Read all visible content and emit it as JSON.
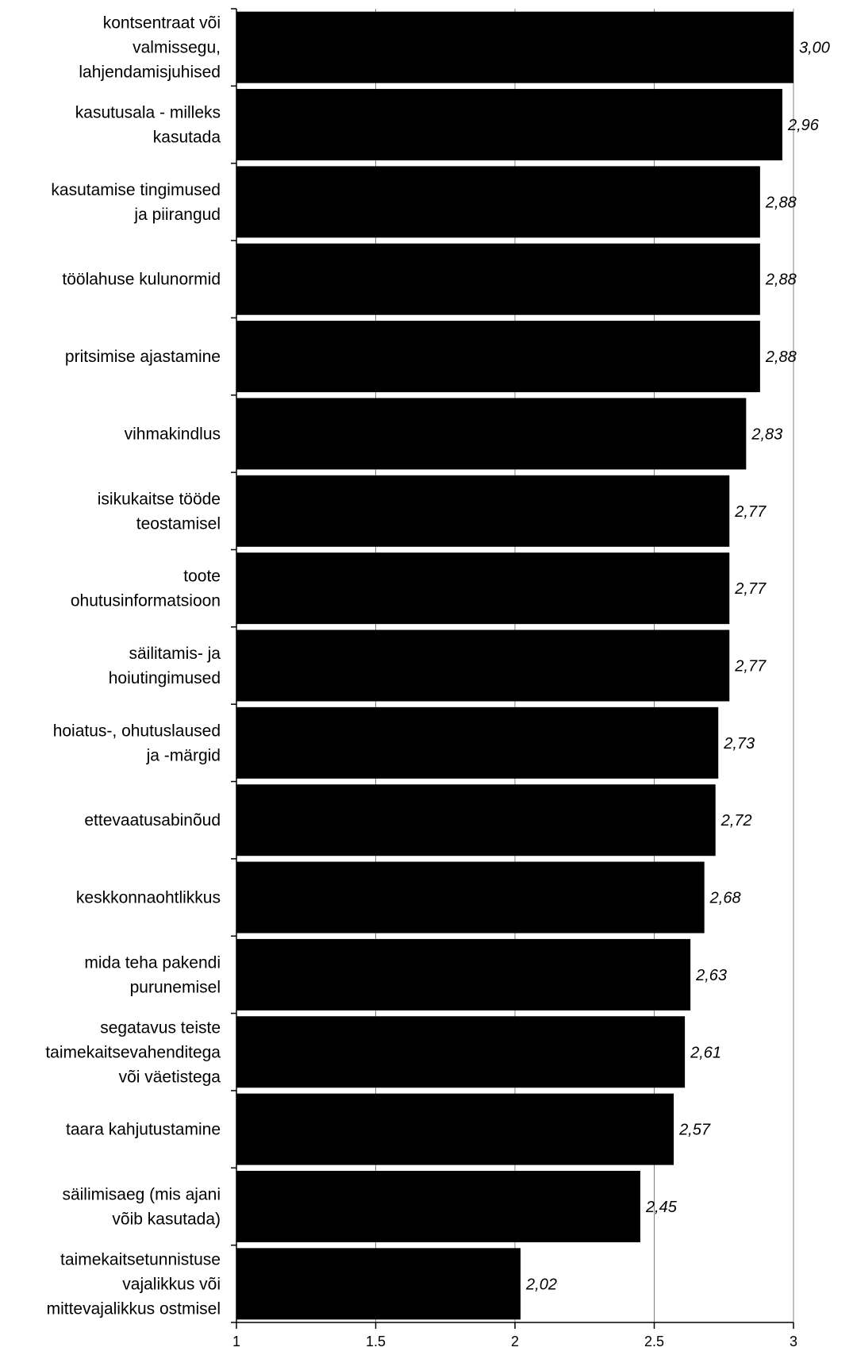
{
  "chart_data": {
    "type": "bar",
    "orientation": "horizontal",
    "categories": [
      "kontsentraat või valmissegu, lahjendamisjuhised",
      "kasutusala - milleks kasutada",
      "kasutamise tingimused ja piirangud",
      "töölahuse kulunormid",
      "pritsimise ajastamine",
      "vihmakindlus",
      "isikukaitse tööde teostamisel",
      "toote ohutusinformatsioon",
      "säilitamis- ja hoiutingimused",
      "hoiatus-, ohutuslaused ja -märgid",
      "ettevaatusabinõud",
      "keskkonnaohtlikkus",
      "mida teha pakendi purunemisel",
      "segatavus teiste taimekaitsevahenditega või väetistega",
      "taara kahjutustamine",
      "säilimisaeg (mis ajani võib kasutada)",
      "taimekaitsetunnistuse vajalikkus või mittevajalikkus ostmisel"
    ],
    "category_lines": [
      [
        "kontsentraat või",
        "valmissegu,",
        "lahjendamisjuhised"
      ],
      [
        "kasutusala - milleks",
        "kasutada"
      ],
      [
        "kasutamise tingimused",
        "ja piirangud"
      ],
      [
        "töölahuse kulunormid"
      ],
      [
        "pritsimise ajastamine"
      ],
      [
        "vihmakindlus"
      ],
      [
        "isikukaitse tööde",
        "teostamisel"
      ],
      [
        "toote",
        "ohutusinformatsioon"
      ],
      [
        "säilitamis- ja",
        "hoiutingimused"
      ],
      [
        "hoiatus-, ohutuslaused",
        "ja -märgid"
      ],
      [
        "ettevaatusabinõud"
      ],
      [
        "keskkonnaohtlikkus"
      ],
      [
        "mida teha pakendi",
        "purunemisel"
      ],
      [
        "segatavus teiste",
        "taimekaitsevahenditega",
        "või väetistega"
      ],
      [
        "taara kahjutustamine"
      ],
      [
        "säilimisaeg (mis ajani",
        "võib kasutada)"
      ],
      [
        "taimekaitsetunnistuse",
        "vajalikkus või",
        "mittevajalikkus ostmisel"
      ]
    ],
    "values": [
      3.0,
      2.96,
      2.88,
      2.88,
      2.88,
      2.83,
      2.77,
      2.77,
      2.77,
      2.73,
      2.72,
      2.68,
      2.63,
      2.61,
      2.57,
      2.45,
      2.02
    ],
    "value_labels": [
      "3,00",
      "2,96",
      "2,88",
      "2,88",
      "2,88",
      "2,83",
      "2,77",
      "2,77",
      "2,77",
      "2,73",
      "2,72",
      "2,68",
      "2,63",
      "2,61",
      "2,57",
      "2,45",
      "2,02"
    ],
    "xlim": [
      1,
      3
    ],
    "xticks": [
      1,
      1.5,
      2,
      2.5,
      3
    ],
    "xtick_labels": [
      "1",
      "1.5",
      "2",
      "2.5",
      "3"
    ],
    "grid": true,
    "bar_color": "#000000",
    "title": "",
    "xlabel": "",
    "ylabel": ""
  }
}
